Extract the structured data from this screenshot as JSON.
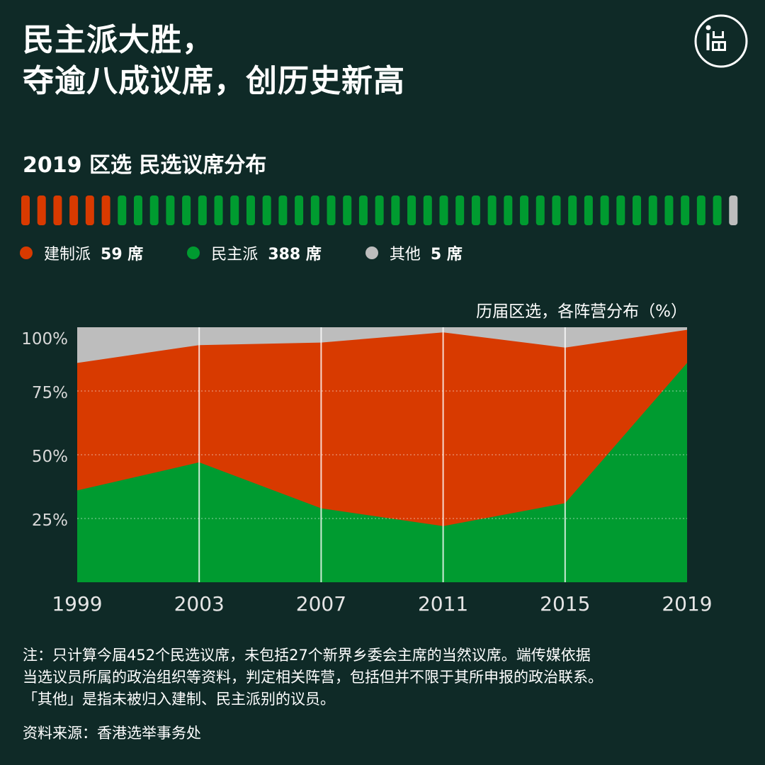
{
  "header": {
    "title_line1": "民主派大胜，",
    "title_line2": "夺逾八成议席，创历史新高",
    "logo_icon": "initium-logo-icon"
  },
  "seat_section": {
    "subtitle": "2019 区选 民选议席分布",
    "seats": [
      {
        "camp": "建制派",
        "count_label": "59 席",
        "seats": 59,
        "color": "#d83a00"
      },
      {
        "camp": "民主派",
        "count_label": "388 席",
        "seats": 388,
        "color": "#009b30"
      },
      {
        "camp": "其他",
        "count_label": "5 席",
        "seats": 5,
        "color": "#bdbdbd"
      }
    ],
    "bar_segments": {
      "red": 6,
      "green": 38,
      "grey": 1
    }
  },
  "chart_caption": "历届区选，各阵营分布（%）",
  "chart_data": {
    "type": "area",
    "stacked": true,
    "x": [
      1999,
      2003,
      2007,
      2011,
      2015,
      2019
    ],
    "series": [
      {
        "name": "民主派",
        "color": "#009b30",
        "values": [
          36,
          47,
          29,
          22,
          31,
          86
        ]
      },
      {
        "name": "建制派",
        "color": "#d83a00",
        "values": [
          50,
          46,
          65,
          76,
          61,
          13
        ]
      },
      {
        "name": "其他",
        "color": "#bdbdbd",
        "values": [
          14,
          7,
          6,
          2,
          8,
          1
        ]
      }
    ],
    "y_ticks": [
      "25%",
      "50%",
      "75%",
      "100%"
    ],
    "x_tick_labels": [
      "1999",
      "2003",
      "2007",
      "2011",
      "2015",
      "2019"
    ],
    "ylim": [
      0,
      100
    ],
    "grid": true
  },
  "footer": {
    "note_line1": "注：只计算今届452个民选议席，未包括27个新界乡委会主席的当然议席。端传媒依据",
    "note_line2": "当选议员所属的政治组织等资料，判定相关阵营，包括但并不限于其所申报的政治联系。",
    "note_line3": "「其他」是指未被归入建制、民主派别的议员。",
    "source": "资料来源：香港选举事务处"
  }
}
